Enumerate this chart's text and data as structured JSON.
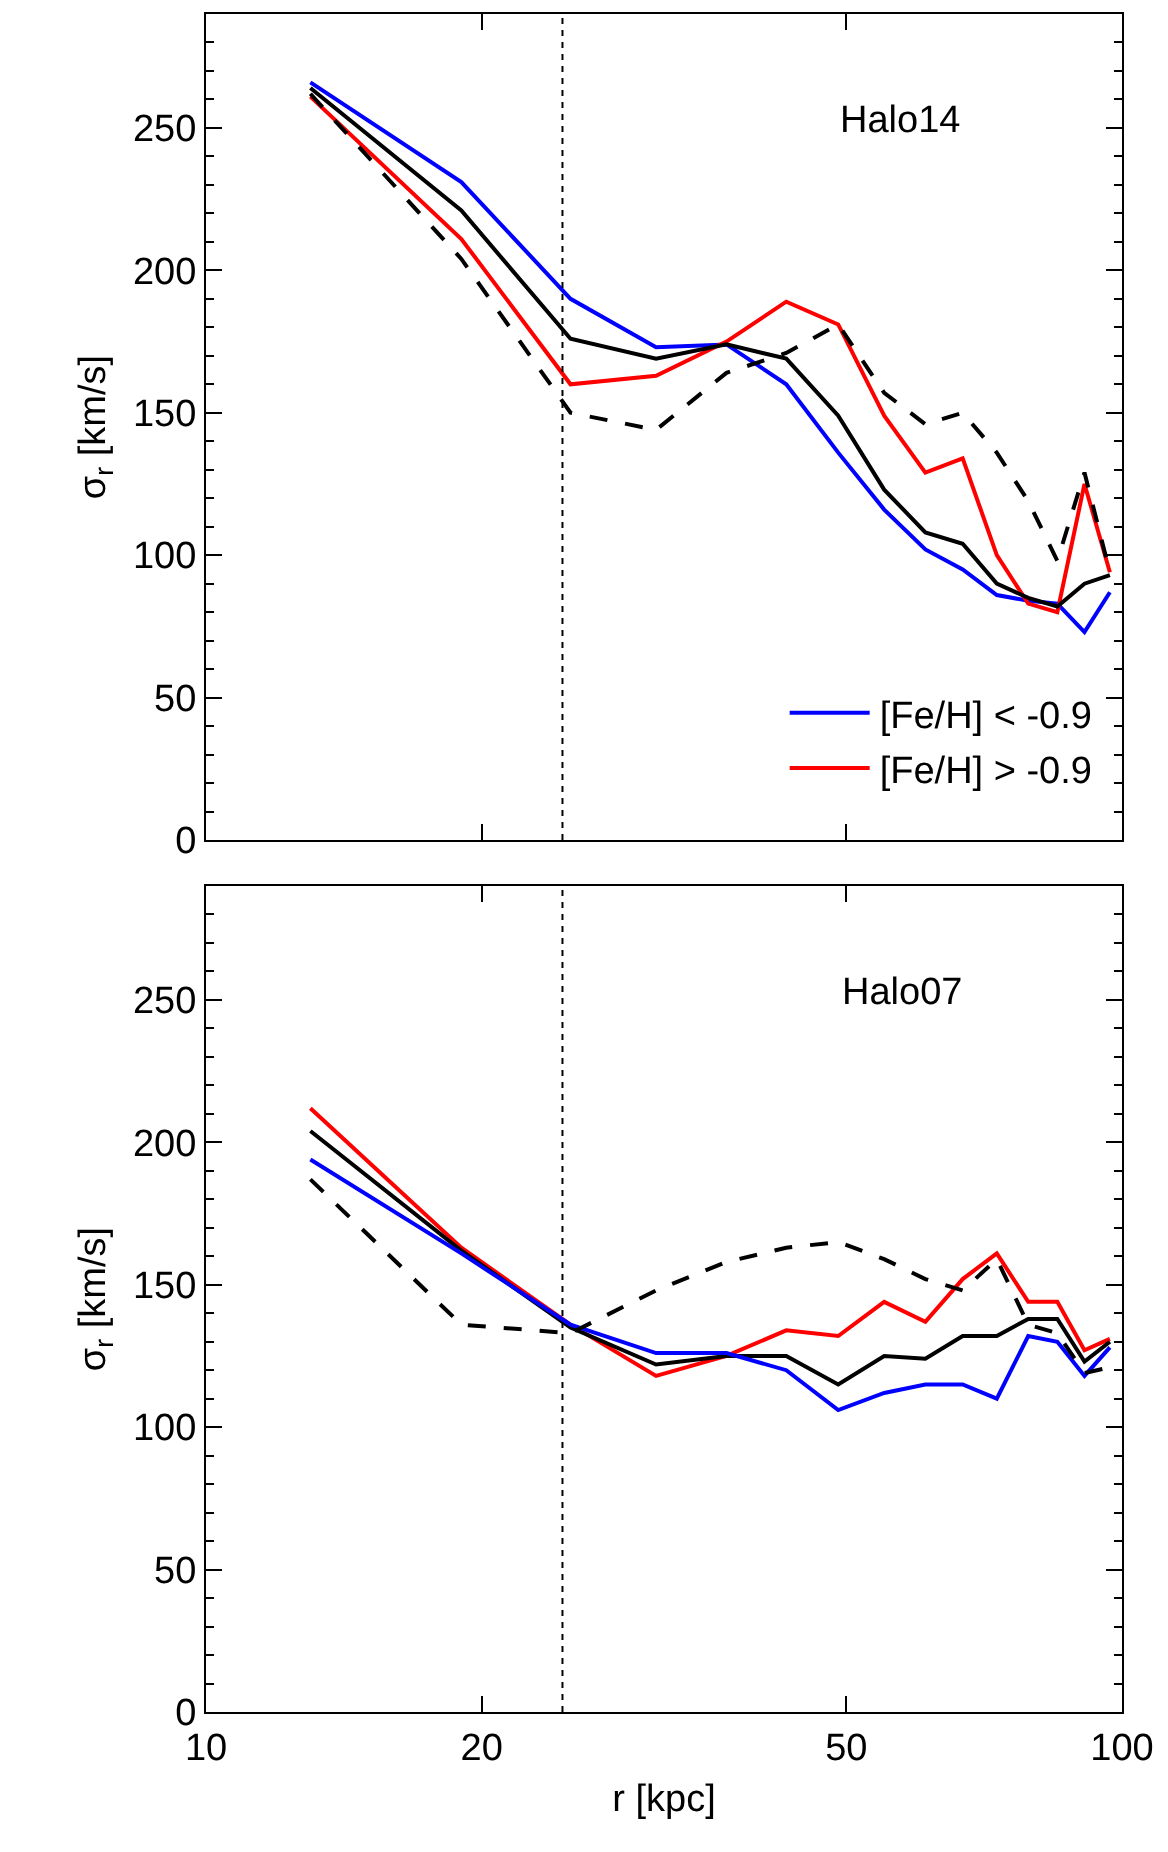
{
  "chart_data": [
    {
      "type": "line",
      "title": "Halo14",
      "ylabel": "σ$_{r}$ [km/s]",
      "x": [
        13,
        19,
        25,
        31,
        37,
        43,
        49,
        55,
        61,
        67,
        73,
        79,
        85,
        91,
        97
      ],
      "log": "x",
      "xlim": [
        10,
        100
      ],
      "xticks": [
        10,
        20,
        50,
        100
      ],
      "ylim": [
        0,
        290
      ],
      "yticks": [
        0,
        {
          "value": 10,
          "label": null
        },
        {
          "value": 20,
          "label": null
        },
        {
          "value": 30,
          "label": null
        },
        {
          "value": 40,
          "label": null
        },
        50,
        {
          "value": 60,
          "label": null
        },
        {
          "value": 70,
          "label": null
        },
        {
          "value": 80,
          "label": null
        },
        {
          "value": 90,
          "label": null
        },
        100,
        {
          "value": 110,
          "label": null
        },
        {
          "value": 120,
          "label": null
        },
        {
          "value": 130,
          "label": null
        },
        {
          "value": 140,
          "label": null
        },
        150,
        {
          "value": 160,
          "label": null
        },
        {
          "value": 170,
          "label": null
        },
        {
          "value": 180,
          "label": null
        },
        {
          "value": 190,
          "label": null
        },
        200,
        {
          "value": 210,
          "label": null
        },
        {
          "value": 220,
          "label": null
        },
        {
          "value": 230,
          "label": null
        },
        {
          "value": 240,
          "label": null
        },
        250,
        {
          "value": 260,
          "label": null
        },
        {
          "value": 270,
          "label": null
        },
        {
          "value": 280,
          "label": null
        }
      ],
      "tick_labels": "y",
      "legend": "bottom right",
      "series": [
        {
          "name": "[Fe/H] < -0.9",
          "color": "#0000ff",
          "values": [
            266,
            231,
            190,
            173,
            174,
            160,
            136,
            116,
            102,
            95,
            86,
            84,
            83,
            73,
            87
          ]
        },
        {
          "name": "[Fe/H] > -0.9",
          "color": "#ff0000",
          "values": [
            261,
            211,
            160,
            163,
            175,
            189,
            181,
            149,
            129,
            134,
            100,
            83,
            80,
            125,
            94
          ]
        },
        {
          "color": "#000000",
          "values": [
            264,
            221,
            176,
            169,
            174,
            169,
            149,
            123,
            108,
            104,
            90,
            85,
            82,
            90,
            93
          ]
        },
        {
          "color": "#000000",
          "line_style": "dashed",
          "values": [
            262,
            204,
            150,
            144,
            164,
            171,
            181,
            157,
            146,
            150,
            136,
            119,
            98,
            129,
            94
          ]
        }
      ],
      "ref_lines": [
        {
          "axis": "x",
          "value": 24.5,
          "color": "#000000",
          "line_style": "dotted"
        }
      ]
    },
    {
      "type": "line",
      "title": "Halo07",
      "xlabel": "r [kpc]",
      "ylabel": "σ$_{r}$ [km/s]",
      "x": [
        13,
        19,
        25,
        31,
        37,
        43,
        49,
        55,
        61,
        67,
        73,
        79,
        85,
        91,
        97
      ],
      "log": "x",
      "xlim": [
        10,
        100
      ],
      "xticks": [
        10,
        20,
        50,
        100
      ],
      "ylim": [
        0,
        290
      ],
      "yticks": [
        0,
        {
          "value": 10,
          "label": null
        },
        {
          "value": 20,
          "label": null
        },
        {
          "value": 30,
          "label": null
        },
        {
          "value": 40,
          "label": null
        },
        50,
        {
          "value": 60,
          "label": null
        },
        {
          "value": 70,
          "label": null
        },
        {
          "value": 80,
          "label": null
        },
        {
          "value": 90,
          "label": null
        },
        100,
        {
          "value": 110,
          "label": null
        },
        {
          "value": 120,
          "label": null
        },
        {
          "value": 130,
          "label": null
        },
        {
          "value": 140,
          "label": null
        },
        150,
        {
          "value": 160,
          "label": null
        },
        {
          "value": 170,
          "label": null
        },
        {
          "value": 180,
          "label": null
        },
        {
          "value": 190,
          "label": null
        },
        200,
        {
          "value": 210,
          "label": null
        },
        {
          "value": 220,
          "label": null
        },
        {
          "value": 230,
          "label": null
        },
        {
          "value": 240,
          "label": null
        },
        250,
        {
          "value": 260,
          "label": null
        },
        {
          "value": 270,
          "label": null
        },
        {
          "value": 280,
          "label": null
        }
      ],
      "series": [
        {
          "color": "#ff0000",
          "values": [
            212,
            163,
            136,
            118,
            125,
            134,
            132,
            144,
            137,
            152,
            161,
            144,
            144,
            127,
            131
          ]
        },
        {
          "color": "#000000",
          "values": [
            204,
            162,
            135,
            122,
            125,
            125,
            115,
            125,
            124,
            132,
            132,
            138,
            138,
            123,
            130
          ]
        },
        {
          "color": "#0000ff",
          "values": [
            194,
            161,
            136,
            126,
            126,
            120,
            106,
            112,
            115,
            115,
            110,
            132,
            130,
            118,
            128
          ]
        },
        {
          "color": "#000000",
          "line_style": "dashed",
          "values": [
            187,
            136,
            133,
            148,
            158,
            163,
            165,
            159,
            152,
            148,
            159,
            136,
            133,
            119,
            121
          ]
        }
      ],
      "ref_lines": [
        {
          "axis": "x",
          "value": 24.5,
          "color": "#000000",
          "line_style": "dotted"
        }
      ]
    }
  ]
}
